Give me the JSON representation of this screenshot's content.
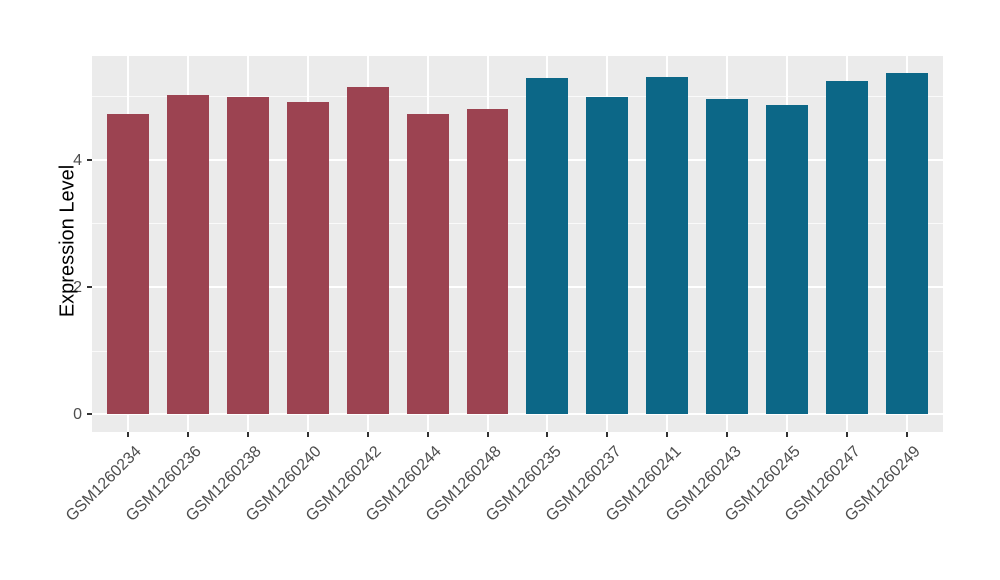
{
  "chart_data": {
    "type": "bar",
    "title": "",
    "xlabel": "",
    "ylabel": "Expression Level",
    "categories": [
      "GSM1260234",
      "GSM1260236",
      "GSM1260238",
      "GSM1260240",
      "GSM1260242",
      "GSM1260244",
      "GSM1260248",
      "GSM1260235",
      "GSM1260237",
      "GSM1260241",
      "GSM1260243",
      "GSM1260245",
      "GSM1260247",
      "GSM1260249"
    ],
    "values": [
      4.72,
      5.01,
      4.99,
      4.9,
      5.15,
      4.72,
      4.8,
      5.28,
      4.99,
      5.3,
      4.96,
      4.86,
      5.23,
      5.36
    ],
    "group_index": [
      0,
      0,
      0,
      0,
      0,
      0,
      0,
      1,
      1,
      1,
      1,
      1,
      1,
      1
    ],
    "group_colors": [
      "#9C4351",
      "#0C6787"
    ],
    "yticks": [
      0,
      2,
      4
    ],
    "yticks_minor": [
      1,
      3,
      5
    ],
    "ylim": [
      -0.28,
      5.63
    ],
    "bar_width_frac": 0.7,
    "x_expand": 0.6,
    "x_label_angle": -45,
    "grid": true,
    "legend": "none",
    "panel_background": "#EBEBEB",
    "grid_color": "#FFFFFF",
    "axis_text_color": "#4D4D4D",
    "axis_title_color": "#000000",
    "tick_color": "#333333"
  }
}
